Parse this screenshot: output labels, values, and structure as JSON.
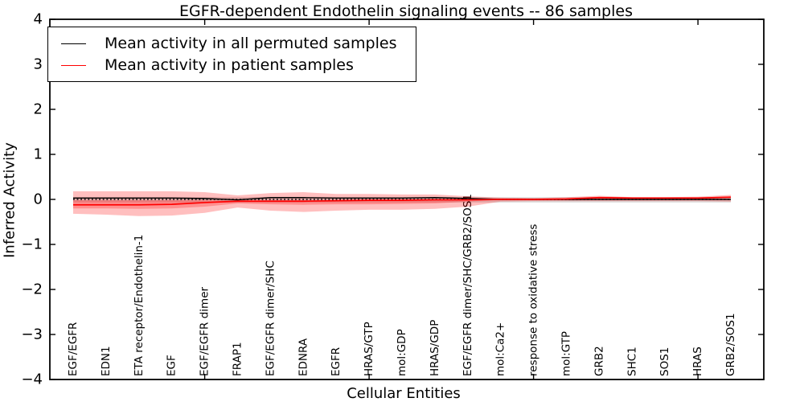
{
  "figure": {
    "title": "EGFR-dependent Endothelin signaling events -- 86 samples",
    "xlabel": "Cellular Entities",
    "ylabel": "Inferred Activity"
  },
  "legend": {
    "entries": [
      {
        "label": "Mean activity in all permuted samples",
        "color": "#000000"
      },
      {
        "label": "Mean activity in patient samples",
        "color": "#ff0000"
      }
    ],
    "position": "upper left"
  },
  "chart_data": {
    "type": "line",
    "title": "EGFR-dependent Endothelin signaling events -- 86 samples",
    "xlabel": "Cellular Entities",
    "ylabel": "Inferred Activity",
    "ylim": [
      -4,
      4
    ],
    "yticks": [
      4,
      3,
      2,
      1,
      0,
      -1,
      -2,
      -3,
      -4
    ],
    "xtick_positions": [
      5,
      10,
      15,
      20
    ],
    "grid": false,
    "zero_line": 0,
    "categories": [
      "EGF/EGFR",
      "EDN1",
      "ETA receptor/Endothelin-1",
      "EGF",
      "EGF/EGFR dimer",
      "FRAP1",
      "EGF/EGFR dimer/SHC",
      "EDNRA",
      "EGFR",
      "HRAS/GTP",
      "mol:GDP",
      "HRAS/GDP",
      "EGF/EGFR dimer/SHC/GRB2/SOS1",
      "mol:Ca2+",
      "response to oxidative stress",
      "mol:GTP",
      "GRB2",
      "SHC1",
      "SOS1",
      "HRAS",
      "GRB2/SOS1"
    ],
    "series": [
      {
        "name": "Mean activity in all permuted samples",
        "color": "#000000",
        "values": [
          0.03,
          0.03,
          0.03,
          0.03,
          0.02,
          -0.01,
          0.04,
          0.04,
          0.03,
          0.03,
          0.03,
          0.04,
          0.02,
          0.0,
          0.0,
          0.0,
          0.0,
          0.0,
          0.0,
          0.0,
          0.0
        ]
      },
      {
        "name": "Mean activity in patient samples",
        "color": "#ff0000",
        "values": [
          -0.12,
          -0.12,
          -0.12,
          -0.11,
          -0.07,
          -0.04,
          -0.04,
          -0.04,
          -0.03,
          -0.02,
          -0.02,
          -0.01,
          -0.01,
          0.0,
          0.0,
          0.01,
          0.04,
          0.03,
          0.03,
          0.03,
          0.05
        ]
      }
    ],
    "bands": [
      {
        "name": "permuted-sample-range",
        "color": "#000000",
        "opacity": 0.14,
        "upper": [
          0.05,
          0.05,
          0.05,
          0.05,
          0.05,
          0.05,
          0.05,
          0.05,
          0.05,
          0.05,
          0.05,
          0.05,
          0.05,
          0.05,
          0.05,
          0.05,
          0.05,
          0.05,
          0.05,
          0.05,
          0.05
        ],
        "lower": [
          -0.07,
          -0.07,
          -0.07,
          -0.07,
          -0.07,
          -0.07,
          -0.07,
          -0.07,
          -0.07,
          -0.07,
          -0.07,
          -0.07,
          -0.07,
          -0.07,
          -0.07,
          -0.07,
          -0.07,
          -0.07,
          -0.07,
          -0.07,
          -0.07
        ]
      },
      {
        "name": "patient-sample-outer-range",
        "color": "#ff0000",
        "opacity": 0.25,
        "upper": [
          0.18,
          0.18,
          0.18,
          0.18,
          0.16,
          0.09,
          0.14,
          0.16,
          0.12,
          0.12,
          0.11,
          0.11,
          0.07,
          0.04,
          0.03,
          0.05,
          0.08,
          0.05,
          0.05,
          0.06,
          0.1
        ],
        "lower": [
          -0.32,
          -0.34,
          -0.37,
          -0.36,
          -0.3,
          -0.18,
          -0.25,
          -0.28,
          -0.25,
          -0.23,
          -0.23,
          -0.21,
          -0.16,
          -0.05,
          -0.04,
          -0.04,
          -0.04,
          -0.04,
          -0.04,
          -0.04,
          -0.05
        ]
      },
      {
        "name": "patient-sample-inner-range",
        "color": "#ff0000",
        "opacity": 0.25,
        "upper": [
          -0.02,
          -0.02,
          -0.02,
          -0.02,
          -0.02,
          -0.02,
          -0.02,
          -0.02,
          -0.01,
          -0.01,
          -0.01,
          -0.01,
          0.0,
          0.01,
          0.01,
          0.02,
          0.05,
          0.04,
          0.04,
          0.04,
          0.06
        ],
        "lower": [
          -0.2,
          -0.2,
          -0.21,
          -0.2,
          -0.16,
          -0.09,
          -0.11,
          -0.12,
          -0.11,
          -0.11,
          -0.1,
          -0.09,
          -0.05,
          -0.01,
          -0.01,
          0.0,
          0.02,
          0.02,
          0.02,
          0.02,
          0.03
        ]
      }
    ],
    "legend_position": "upper left"
  }
}
